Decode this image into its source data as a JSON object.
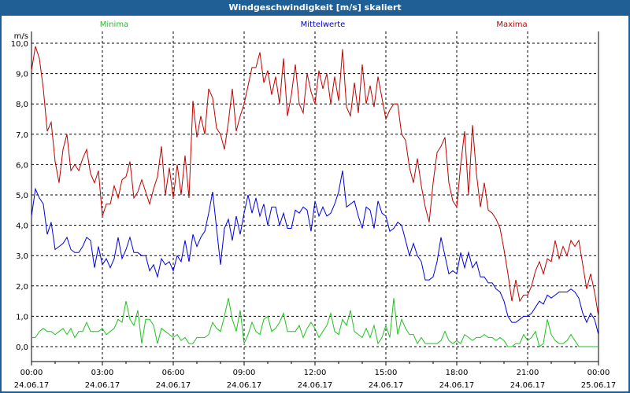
{
  "window": {
    "title": "Windgeschwindigkeit [m/s] skaliert"
  },
  "chart_data": {
    "type": "line",
    "title": "Windgeschwindigkeit [m/s] skaliert",
    "ylabel": "m/s",
    "ylim": [
      0,
      10
    ],
    "xlim_minutes": [
      0,
      1440
    ],
    "sample_interval_minutes": 10,
    "grid": true,
    "legend_placement": "top",
    "yticks": [
      "0,0",
      "1,0",
      "2,0",
      "3,0",
      "4,0",
      "5,0",
      "6,0",
      "7,0",
      "8,0",
      "9,0",
      "10,0"
    ],
    "xticks": [
      {
        "time": "00:00",
        "date": "24.06.17"
      },
      {
        "time": "03:00",
        "date": "24.06.17"
      },
      {
        "time": "06:00",
        "date": "24.06.17"
      },
      {
        "time": "09:00",
        "date": "24.06.17"
      },
      {
        "time": "12:00",
        "date": "24.06.17"
      },
      {
        "time": "15:00",
        "date": "24.06.17"
      },
      {
        "time": "18:00",
        "date": "24.06.17"
      },
      {
        "time": "21:00",
        "date": "24.06.17"
      },
      {
        "time": "00:00",
        "date": "25.06.17"
      }
    ],
    "series": [
      {
        "name": "Minima",
        "color": "#1fc21f",
        "values": [
          0.3,
          0.3,
          0.5,
          0.6,
          0.5,
          0.5,
          0.4,
          0.5,
          0.6,
          0.4,
          0.6,
          0.3,
          0.5,
          0.5,
          0.8,
          0.5,
          0.5,
          0.5,
          0.6,
          0.4,
          0.5,
          0.6,
          0.9,
          0.8,
          1.5,
          0.9,
          0.7,
          1.2,
          0.1,
          0.9,
          0.9,
          0.7,
          0.1,
          0.6,
          0.5,
          0.4,
          0.3,
          0.4,
          0.2,
          0.3,
          0.1,
          0.1,
          0.3,
          0.3,
          0.3,
          0.4,
          0.8,
          0.6,
          0.5,
          1.0,
          1.6,
          0.9,
          0.5,
          1.2,
          0.1,
          0.4,
          0.8,
          0.5,
          0.4,
          0.9,
          1.0,
          0.5,
          0.6,
          0.8,
          1.1,
          0.5,
          0.5,
          0.5,
          0.7,
          0.3,
          0.6,
          0.8,
          0.6,
          0.3,
          0.5,
          0.7,
          1.1,
          0.5,
          0.4,
          0.9,
          0.7,
          1.2,
          0.5,
          0.4,
          0.3,
          0.6,
          0.3,
          0.7,
          0.1,
          0.3,
          0.7,
          0.3,
          1.6,
          0.4,
          0.9,
          0.6,
          0.4,
          0.4,
          0.1,
          0.3,
          0.1,
          0.1,
          0.1,
          0.1,
          0.2,
          0.5,
          0.2,
          0.1,
          0.2,
          0.1,
          0.4,
          0.3,
          0.2,
          0.3,
          0.3,
          0.4,
          0.3,
          0.3,
          0.2,
          0.3,
          0.2,
          0.0,
          0.0,
          0.1,
          0.1,
          0.4,
          0.2,
          0.3,
          0.5,
          0.0,
          0.1,
          0.9,
          0.4,
          0.2,
          0.1,
          0.1,
          0.2,
          0.4,
          0.2,
          0.0,
          0.0,
          0.0,
          0.0,
          0.0,
          0.0
        ]
      },
      {
        "name": "Mittelwerte",
        "color": "#0000dd",
        "values": [
          4.3,
          5.2,
          4.9,
          4.7,
          3.7,
          4.1,
          3.2,
          3.3,
          3.4,
          3.6,
          3.2,
          3.1,
          3.1,
          3.3,
          3.6,
          3.5,
          2.6,
          3.3,
          2.7,
          2.9,
          2.6,
          2.9,
          3.6,
          2.9,
          3.2,
          3.6,
          3.1,
          3.1,
          3.0,
          3.0,
          2.5,
          2.7,
          2.3,
          2.9,
          2.7,
          2.8,
          2.5,
          3.0,
          2.8,
          3.5,
          2.8,
          3.7,
          3.3,
          3.6,
          3.8,
          4.4,
          5.1,
          3.9,
          2.7,
          3.9,
          4.2,
          3.5,
          4.3,
          3.7,
          4.4,
          5.0,
          4.4,
          4.9,
          4.3,
          4.7,
          4.0,
          4.6,
          4.6,
          4.0,
          4.4,
          3.9,
          3.9,
          4.5,
          4.4,
          4.6,
          4.5,
          3.8,
          4.8,
          4.3,
          4.6,
          4.3,
          4.4,
          4.7,
          5.1,
          5.8,
          4.6,
          4.7,
          4.8,
          4.3,
          3.9,
          4.6,
          4.5,
          3.9,
          4.8,
          4.4,
          4.3,
          3.8,
          3.9,
          4.1,
          4.0,
          3.5,
          3.0,
          3.4,
          3.0,
          2.8,
          2.2,
          2.2,
          2.3,
          2.8,
          3.6,
          3.0,
          2.4,
          2.5,
          2.4,
          3.1,
          2.6,
          3.1,
          2.6,
          2.8,
          2.3,
          2.3,
          2.1,
          2.1,
          1.9,
          1.8,
          1.5,
          1.0,
          0.8,
          0.8,
          0.9,
          1.0,
          1.0,
          1.1,
          1.3,
          1.5,
          1.4,
          1.7,
          1.6,
          1.7,
          1.8,
          1.8,
          1.8,
          1.9,
          1.8,
          1.6,
          1.1,
          0.8,
          1.1,
          0.9,
          0.4
        ]
      },
      {
        "name": "Maxima",
        "color": "#c00000",
        "values": [
          9.1,
          9.9,
          9.5,
          8.5,
          7.1,
          7.4,
          6.1,
          5.4,
          6.5,
          7.0,
          5.8,
          6.0,
          5.8,
          6.2,
          6.5,
          5.7,
          5.4,
          5.8,
          4.3,
          4.7,
          4.7,
          5.3,
          4.9,
          5.5,
          5.6,
          6.1,
          4.9,
          5.1,
          5.5,
          5.1,
          4.7,
          5.2,
          5.6,
          6.6,
          5.0,
          5.9,
          4.9,
          6.0,
          5.0,
          6.3,
          4.9,
          8.1,
          6.9,
          7.6,
          7.0,
          8.5,
          8.2,
          7.2,
          7.0,
          6.5,
          7.4,
          8.5,
          7.1,
          7.6,
          8.0,
          8.6,
          9.2,
          9.2,
          9.7,
          8.7,
          9.1,
          8.3,
          8.9,
          8.0,
          9.5,
          7.6,
          8.3,
          9.3,
          8.0,
          7.7,
          9.0,
          8.4,
          8.0,
          9.1,
          8.5,
          9.0,
          8.0,
          8.9,
          8.1,
          9.8,
          7.9,
          7.6,
          8.7,
          7.7,
          9.3,
          8.0,
          8.6,
          7.9,
          8.9,
          8.2,
          7.5,
          7.8,
          8.0,
          8.0,
          7.0,
          6.8,
          5.9,
          5.4,
          6.2,
          5.3,
          4.6,
          4.1,
          5.4,
          6.4,
          6.6,
          6.9,
          5.4,
          4.8,
          4.6,
          6.0,
          7.1,
          5.0,
          7.3,
          5.7,
          4.6,
          5.4,
          4.5,
          4.4,
          4.2,
          3.9,
          3.2,
          2.4,
          1.5,
          2.2,
          1.5,
          1.7,
          1.7,
          2.0,
          2.5,
          2.8,
          2.4,
          2.9,
          2.8,
          3.5,
          2.9,
          3.3,
          3.0,
          3.5,
          3.3,
          3.5,
          2.7,
          1.9,
          2.4,
          1.8,
          1.0
        ]
      }
    ]
  }
}
